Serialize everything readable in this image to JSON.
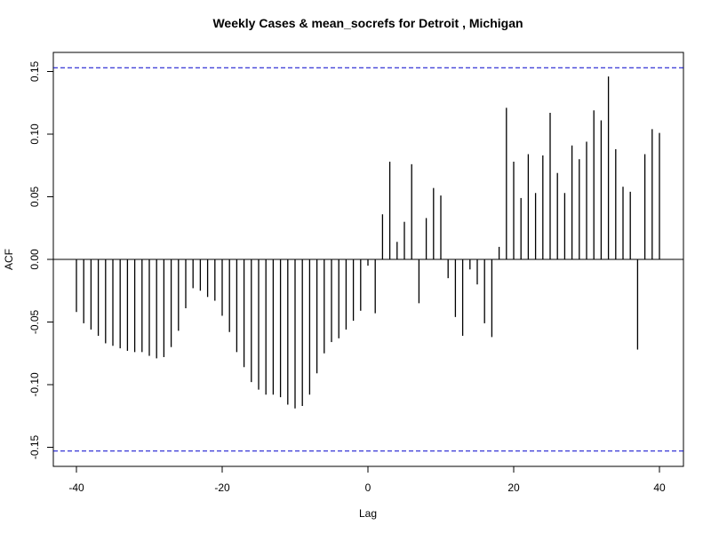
{
  "chart_data": {
    "type": "bar",
    "title": "Weekly Cases & mean_socrefs for Detroit , Michigan",
    "xlabel": "Lag",
    "ylabel": "ACF",
    "xlim": [
      -40,
      40
    ],
    "ylim": [
      -0.15,
      0.15
    ],
    "x_ticks": [
      -40,
      -20,
      0,
      20,
      40
    ],
    "y_ticks": [
      -0.15,
      -0.1,
      -0.05,
      0.0,
      0.05,
      0.1,
      0.15
    ],
    "x_tick_labels": [
      "-40",
      "-20",
      "0",
      "20",
      "40"
    ],
    "y_tick_labels": [
      "-0.15",
      "-0.10",
      "-0.05",
      "0.00",
      "0.05",
      "0.10",
      "0.15"
    ],
    "confidence_bounds": [
      0.153,
      -0.153
    ],
    "confidence_color": "#0000cc",
    "bar_color": "#000000",
    "grid": false,
    "lags": [
      -40,
      -39,
      -38,
      -37,
      -36,
      -35,
      -34,
      -33,
      -32,
      -31,
      -30,
      -29,
      -28,
      -27,
      -26,
      -25,
      -24,
      -23,
      -22,
      -21,
      -20,
      -19,
      -18,
      -17,
      -16,
      -15,
      -14,
      -13,
      -12,
      -11,
      -10,
      -9,
      -8,
      -7,
      -6,
      -5,
      -4,
      -3,
      -2,
      -1,
      0,
      1,
      2,
      3,
      4,
      5,
      6,
      7,
      8,
      9,
      10,
      11,
      12,
      13,
      14,
      15,
      16,
      17,
      18,
      19,
      20,
      21,
      22,
      23,
      24,
      25,
      26,
      27,
      28,
      29,
      30,
      31,
      32,
      33,
      34,
      35,
      36,
      37,
      38,
      39,
      40
    ],
    "values": [
      -0.042,
      -0.051,
      -0.056,
      -0.061,
      -0.067,
      -0.069,
      -0.071,
      -0.073,
      -0.074,
      -0.074,
      -0.077,
      -0.079,
      -0.078,
      -0.07,
      -0.057,
      -0.039,
      -0.023,
      -0.025,
      -0.03,
      -0.033,
      -0.045,
      -0.058,
      -0.074,
      -0.086,
      -0.098,
      -0.104,
      -0.108,
      -0.108,
      -0.11,
      -0.116,
      -0.119,
      -0.117,
      -0.108,
      -0.091,
      -0.075,
      -0.066,
      -0.063,
      -0.056,
      -0.049,
      -0.041,
      -0.005,
      -0.043,
      0.036,
      0.078,
      0.014,
      0.03,
      0.076,
      -0.035,
      0.033,
      0.057,
      0.051,
      -0.015,
      -0.046,
      -0.061,
      -0.008,
      -0.02,
      -0.051,
      -0.062,
      0.01,
      0.121,
      0.078,
      0.049,
      0.084,
      0.053,
      0.083,
      0.117,
      0.069,
      0.053,
      0.091,
      0.08,
      0.094,
      0.119,
      0.111,
      0.146,
      0.088,
      0.058,
      0.054,
      -0.072,
      0.084,
      0.104,
      0.101
    ]
  }
}
